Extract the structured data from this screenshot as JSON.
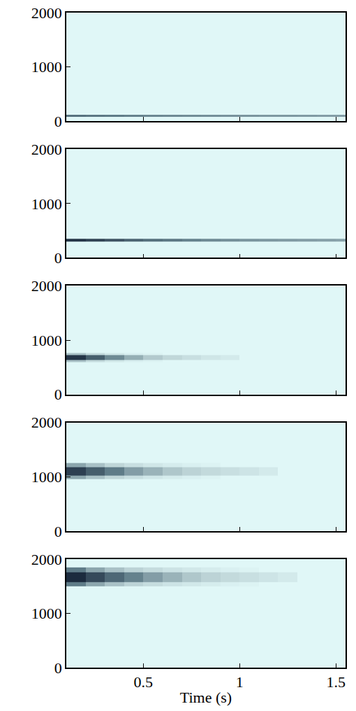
{
  "chart_data": [
    {
      "type": "heatmap",
      "xlim": [
        0.1,
        1.55
      ],
      "ylim": [
        0,
        2000
      ],
      "xticks": [
        0.5,
        1,
        1.5
      ],
      "yticks": [
        0,
        1000,
        2000
      ],
      "tick_labels": "y",
      "zlim": [
        0,
        1
      ],
      "x": [
        0.1,
        0.2,
        0.3,
        0.4,
        0.5,
        0.6,
        0.7,
        0.8,
        0.9,
        1.0,
        1.1,
        1.2,
        1.3,
        1.4,
        1.5,
        1.55
      ],
      "y": [
        0,
        85,
        115,
        2000
      ],
      "z": [
        [
          0,
          0,
          0,
          0,
          0,
          0,
          0,
          0,
          0,
          0,
          0,
          0,
          0,
          0,
          0
        ],
        [
          0.65,
          0.62,
          0.6,
          0.58,
          0.56,
          0.55,
          0.54,
          0.53,
          0.52,
          0.51,
          0.5,
          0.5,
          0.49,
          0.48,
          0.48
        ],
        [
          0,
          0,
          0,
          0,
          0,
          0,
          0,
          0,
          0,
          0,
          0,
          0,
          0,
          0,
          0
        ]
      ]
    },
    {
      "type": "heatmap",
      "xlim": [
        0.1,
        1.55
      ],
      "ylim": [
        0,
        2000
      ],
      "xticks": [
        0.5,
        1,
        1.5
      ],
      "yticks": [
        0,
        1000,
        2000
      ],
      "tick_labels": "y",
      "zlim": [
        0,
        1
      ],
      "x": [
        0.1,
        0.2,
        0.3,
        0.4,
        0.5,
        0.6,
        0.7,
        0.8,
        0.9,
        1.0,
        1.1,
        1.2,
        1.3,
        1.4,
        1.5,
        1.55
      ],
      "y": [
        0,
        305,
        355,
        2000
      ],
      "z": [
        [
          0,
          0,
          0,
          0,
          0,
          0,
          0,
          0,
          0,
          0,
          0,
          0,
          0,
          0,
          0
        ],
        [
          0.95,
          0.88,
          0.8,
          0.72,
          0.66,
          0.62,
          0.58,
          0.55,
          0.53,
          0.51,
          0.5,
          0.49,
          0.48,
          0.47,
          0.46
        ],
        [
          0,
          0,
          0,
          0,
          0,
          0,
          0,
          0,
          0,
          0,
          0,
          0,
          0,
          0,
          0
        ]
      ]
    },
    {
      "type": "heatmap",
      "xlim": [
        0.1,
        1.55
      ],
      "ylim": [
        0,
        2000
      ],
      "xticks": [
        0.5,
        1,
        1.5
      ],
      "yticks": [
        0,
        1000,
        2000
      ],
      "tick_labels": "y",
      "zlim": [
        0,
        1
      ],
      "x": [
        0.1,
        0.2,
        0.3,
        0.4,
        0.5,
        0.6,
        0.7,
        0.8,
        0.9,
        1.0,
        1.1,
        1.2,
        1.3,
        1.4,
        1.5,
        1.55
      ],
      "y": [
        0,
        600,
        640,
        720,
        760,
        2000
      ],
      "z": [
        [
          0,
          0,
          0,
          0,
          0,
          0,
          0,
          0,
          0,
          0,
          0,
          0,
          0,
          0,
          0
        ],
        [
          0.35,
          0.22,
          0.12,
          0.06,
          0.03,
          0,
          0,
          0,
          0,
          0,
          0,
          0,
          0,
          0,
          0
        ],
        [
          0.95,
          0.75,
          0.55,
          0.42,
          0.32,
          0.24,
          0.18,
          0.13,
          0.1,
          0,
          0,
          0,
          0,
          0,
          0
        ],
        [
          0.35,
          0.22,
          0.12,
          0.06,
          0.03,
          0,
          0,
          0,
          0,
          0,
          0,
          0,
          0,
          0,
          0
        ],
        [
          0,
          0,
          0,
          0,
          0,
          0,
          0,
          0,
          0,
          0,
          0,
          0,
          0,
          0,
          0
        ]
      ]
    },
    {
      "type": "heatmap",
      "xlim": [
        0.1,
        1.55
      ],
      "ylim": [
        0,
        2000
      ],
      "xticks": [
        0.5,
        1,
        1.5
      ],
      "yticks": [
        0,
        1000,
        2000
      ],
      "tick_labels": "y",
      "zlim": [
        0,
        1
      ],
      "x": [
        0.1,
        0.2,
        0.3,
        0.4,
        0.5,
        0.6,
        0.7,
        0.8,
        0.9,
        1.0,
        1.1,
        1.2,
        1.3,
        1.4,
        1.5,
        1.55
      ],
      "y": [
        0,
        950,
        1020,
        1180,
        1250,
        2000
      ],
      "z": [
        [
          0,
          0,
          0,
          0,
          0,
          0,
          0,
          0,
          0,
          0,
          0,
          0,
          0,
          0,
          0
        ],
        [
          0.45,
          0.35,
          0.25,
          0.18,
          0.12,
          0.08,
          0.05,
          0.03,
          0,
          0,
          0,
          0,
          0,
          0,
          0
        ],
        [
          0.9,
          0.75,
          0.6,
          0.48,
          0.4,
          0.33,
          0.27,
          0.22,
          0.18,
          0.14,
          0.1,
          0,
          0,
          0,
          0
        ],
        [
          0.45,
          0.35,
          0.25,
          0.18,
          0.12,
          0.08,
          0.05,
          0.03,
          0,
          0,
          0,
          0,
          0,
          0,
          0
        ],
        [
          0,
          0,
          0,
          0,
          0,
          0,
          0,
          0,
          0,
          0,
          0,
          0,
          0,
          0,
          0
        ]
      ]
    },
    {
      "type": "heatmap",
      "xlim": [
        0.1,
        1.55
      ],
      "ylim": [
        0,
        2000
      ],
      "xticks": [
        0.5,
        1,
        1.5
      ],
      "yticks": [
        0,
        1000,
        2000
      ],
      "xlabel": "Time (s)",
      "zlim": [
        0,
        1
      ],
      "x": [
        0.1,
        0.2,
        0.3,
        0.4,
        0.5,
        0.6,
        0.7,
        0.8,
        0.9,
        1.0,
        1.1,
        1.2,
        1.3,
        1.4,
        1.5,
        1.55
      ],
      "y": [
        0,
        1500,
        1580,
        1750,
        1850,
        2000
      ],
      "z": [
        [
          0,
          0,
          0,
          0,
          0,
          0,
          0,
          0,
          0,
          0,
          0,
          0,
          0,
          0,
          0
        ],
        [
          0.6,
          0.45,
          0.35,
          0.27,
          0.2,
          0.15,
          0.11,
          0.08,
          0.05,
          0.03,
          0,
          0,
          0,
          0,
          0
        ],
        [
          1,
          0.85,
          0.7,
          0.58,
          0.48,
          0.4,
          0.33,
          0.27,
          0.22,
          0.18,
          0.14,
          0.1,
          0,
          0,
          0
        ],
        [
          0.6,
          0.45,
          0.35,
          0.27,
          0.2,
          0.15,
          0.11,
          0.08,
          0.05,
          0.03,
          0,
          0,
          0,
          0,
          0
        ],
        [
          0,
          0,
          0,
          0,
          0,
          0,
          0,
          0,
          0,
          0,
          0,
          0,
          0,
          0,
          0
        ]
      ]
    }
  ]
}
